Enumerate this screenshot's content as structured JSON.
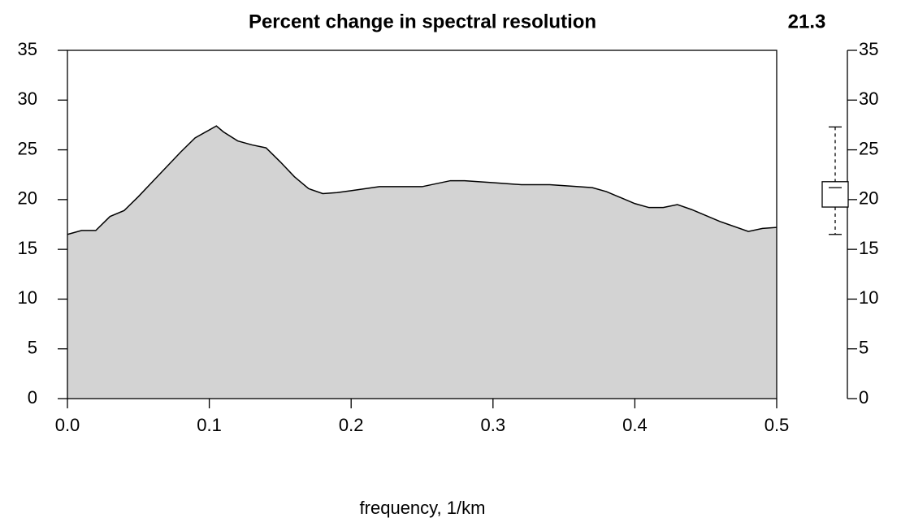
{
  "chart_data": {
    "type": "area",
    "title": "Percent change in spectral resolution",
    "annotation": 21.3,
    "xlabel": "frequency, 1/km",
    "x": [
      0,
      0.01,
      0.02,
      0.03,
      0.04,
      0.05,
      0.06,
      0.07,
      0.08,
      0.09,
      0.105,
      0.11,
      0.12,
      0.13,
      0.14,
      0.15,
      0.16,
      0.17,
      0.18,
      0.19,
      0.2,
      0.22,
      0.25,
      0.27,
      0.28,
      0.3,
      0.32,
      0.34,
      0.36,
      0.37,
      0.38,
      0.4,
      0.41,
      0.42,
      0.43,
      0.44,
      0.46,
      0.48,
      0.49,
      0.5
    ],
    "values": [
      16.5,
      16.9,
      16.9,
      18.3,
      18.9,
      20.3,
      21.8,
      23.3,
      24.8,
      26.2,
      27.4,
      26.8,
      25.9,
      25.5,
      25.2,
      23.8,
      22.3,
      21.1,
      20.6,
      20.7,
      20.9,
      21.3,
      21.3,
      21.9,
      21.9,
      21.7,
      21.5,
      21.5,
      21.3,
      21.2,
      20.8,
      19.6,
      19.2,
      19.2,
      19.5,
      19.0,
      17.8,
      16.8,
      17.1,
      17.2
    ],
    "fill": "#d3d3d3",
    "line_color": "#000000",
    "xlim": [
      0,
      0.5
    ],
    "xticks": [
      {
        "value": 0,
        "label": "0.0"
      },
      0.1,
      0.2,
      0.3,
      0.4,
      0.5
    ],
    "ylim": [
      0,
      35
    ],
    "yticks": [
      0,
      5,
      10,
      15,
      20,
      25,
      30,
      35
    ],
    "boxplot": {
      "axis": "y2",
      "whislo": 16.5,
      "q1": 19.25,
      "med": 21.2,
      "q3": 21.8,
      "whishi": 27.3
    },
    "y2lim": [
      0,
      35
    ],
    "y2ticks": [
      0,
      5,
      10,
      15,
      20,
      25,
      30,
      35
    ]
  }
}
